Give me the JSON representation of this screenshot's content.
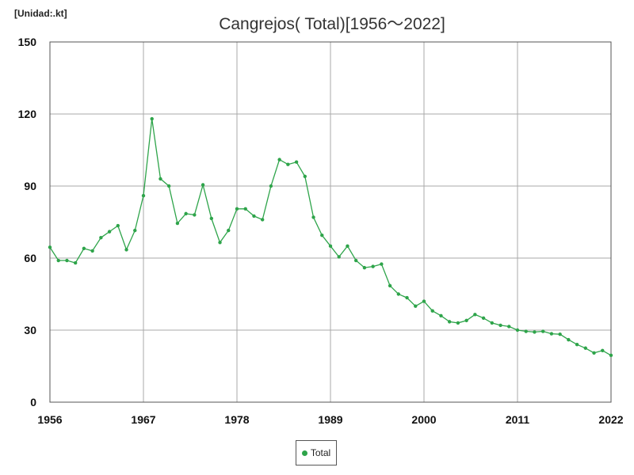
{
  "unit_label": "[Unidad:.kt]",
  "chart_data": {
    "type": "line",
    "title": "Cangrejos( Total)[1956～2022]",
    "xlabel": "",
    "ylabel": "",
    "xlim": [
      1956,
      2022
    ],
    "ylim": [
      0,
      150
    ],
    "x_ticks": [
      1956,
      1967,
      1978,
      1989,
      2000,
      2011,
      2022
    ],
    "y_ticks": [
      0,
      30,
      60,
      90,
      120,
      150
    ],
    "grid": true,
    "legend_position": "bottom",
    "color": "#2ea44a",
    "series": [
      {
        "name": "Total",
        "x": [
          1956,
          1957,
          1958,
          1959,
          1960,
          1961,
          1962,
          1963,
          1964,
          1965,
          1966,
          1967,
          1968,
          1969,
          1970,
          1971,
          1972,
          1973,
          1974,
          1975,
          1976,
          1977,
          1978,
          1979,
          1980,
          1981,
          1982,
          1983,
          1984,
          1985,
          1986,
          1987,
          1988,
          1989,
          1990,
          1991,
          1992,
          1993,
          1994,
          1995,
          1996,
          1997,
          1998,
          1999,
          2000,
          2001,
          2002,
          2003,
          2004,
          2005,
          2006,
          2007,
          2008,
          2009,
          2010,
          2011,
          2012,
          2013,
          2014,
          2015,
          2016,
          2017,
          2018,
          2019,
          2020,
          2021,
          2022
        ],
        "values": [
          64.5,
          59,
          59,
          58,
          64,
          63,
          68.5,
          71,
          73.5,
          63.5,
          71.5,
          86,
          118,
          93,
          90,
          74.5,
          78.5,
          78,
          90.5,
          76.5,
          66.5,
          71.5,
          80.5,
          80.5,
          77.5,
          76,
          90,
          101,
          99,
          100,
          94,
          77,
          69.5,
          65,
          60.5,
          65,
          59,
          56,
          56.5,
          57.5,
          48.5,
          45,
          43.5,
          40,
          42,
          38,
          36,
          33.5,
          33,
          34,
          36.5,
          35,
          33,
          32,
          31.5,
          30,
          29.5,
          29.2,
          29.5,
          28.5,
          28.3,
          26,
          24,
          22.5,
          20.5,
          21.5,
          19.5
        ]
      }
    ]
  }
}
